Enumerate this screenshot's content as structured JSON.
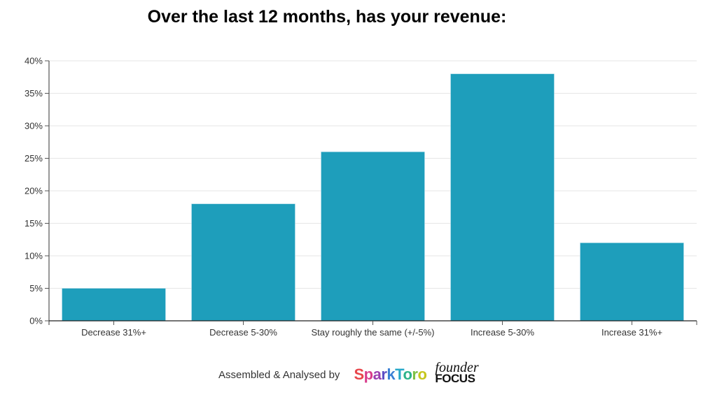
{
  "chart_data": {
    "type": "bar",
    "title": "Over the last 12 months, has your revenue:",
    "categories": [
      "Decrease 31%+",
      "Decrease 5-30%",
      "Stay roughly the same (+/-5%)",
      "Increase 5-30%",
      "Increase 31%+"
    ],
    "values": [
      5,
      18,
      26,
      38,
      12
    ],
    "unit": "%",
    "xlabel": "",
    "ylabel": "",
    "ylim": [
      0,
      40
    ],
    "yticks": [
      0,
      5,
      10,
      15,
      20,
      25,
      30,
      35,
      40
    ],
    "ytick_labels": [
      "0%",
      "5%",
      "10%",
      "15%",
      "20%",
      "25%",
      "30%",
      "35%",
      "40%"
    ],
    "grid": true,
    "legend": "none",
    "bar_color": "#1e9ebb"
  },
  "footer": {
    "text": "Assembled & Analysed by",
    "logos": {
      "sparktoro": "SparkToro",
      "founder_focus_top": "founder",
      "founder_focus_bottom": "FOCUS"
    }
  }
}
